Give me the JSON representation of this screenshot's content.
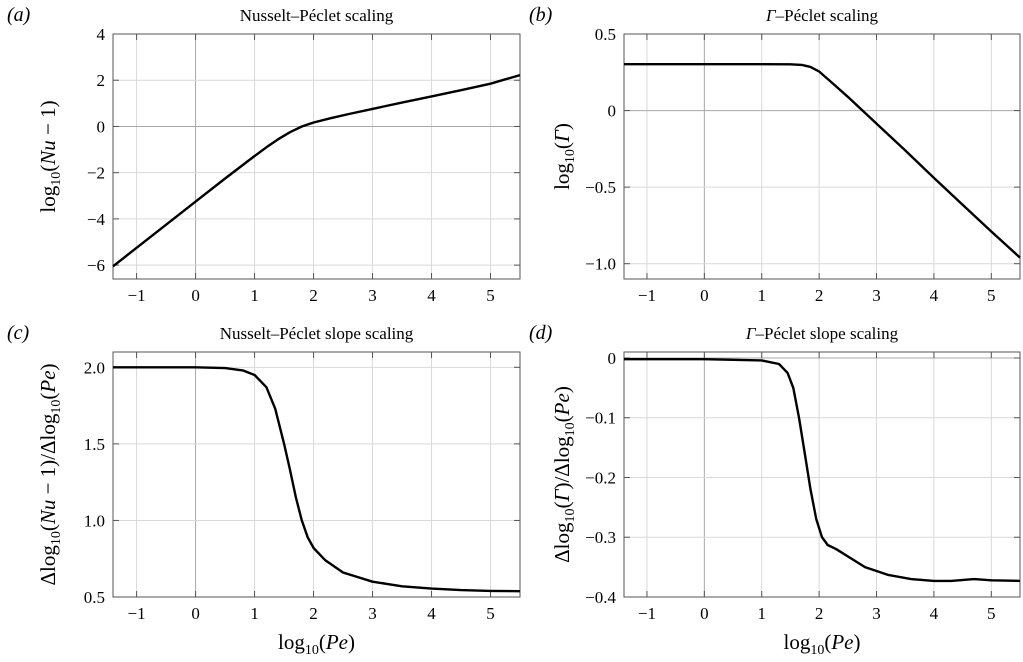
{
  "chart_data": [
    {
      "panel_label": "(a)",
      "title": "Nusselt–Péclet scaling",
      "type": "line",
      "xlabel": "",
      "ylabel": "log10(Nu − 1)",
      "xlim": [
        -1.4,
        5.5
      ],
      "ylim": [
        -6.6,
        4
      ],
      "xticks": [
        -1,
        0,
        1,
        2,
        3,
        4,
        5
      ],
      "yticks": [
        -6,
        -4,
        -2,
        0,
        2,
        4
      ],
      "ytick_labels": [
        "−6",
        "−4",
        "−2",
        "0",
        "2",
        "4"
      ],
      "grid": true,
      "x": [
        -1.4,
        -1.0,
        -0.5,
        0.0,
        0.5,
        1.0,
        1.2,
        1.4,
        1.6,
        1.8,
        2.0,
        2.3,
        2.6,
        3.0,
        3.5,
        4.0,
        4.5,
        5.0,
        5.5
      ],
      "y": [
        -6.05,
        -5.25,
        -4.25,
        -3.25,
        -2.25,
        -1.28,
        -0.9,
        -0.55,
        -0.25,
        0.0,
        0.17,
        0.36,
        0.54,
        0.76,
        1.03,
        1.3,
        1.57,
        1.85,
        2.22
      ]
    },
    {
      "panel_label": "(b)",
      "title": "Γ–Péclet scaling",
      "type": "line",
      "xlabel": "",
      "ylabel": "log10(Γ)",
      "xlim": [
        -1.4,
        5.5
      ],
      "ylim": [
        -1.1,
        0.5
      ],
      "xticks": [
        -1,
        0,
        1,
        2,
        3,
        4,
        5
      ],
      "yticks": [
        -1.0,
        -0.5,
        0,
        0.5
      ],
      "ytick_labels": [
        "−1.0",
        "−0.5",
        "0",
        "0.5"
      ],
      "grid": true,
      "x": [
        -1.4,
        -1.0,
        0.0,
        1.0,
        1.5,
        1.7,
        1.85,
        2.0,
        2.2,
        2.5,
        3.0,
        3.5,
        4.0,
        4.5,
        5.0,
        5.5
      ],
      "y": [
        0.303,
        0.303,
        0.303,
        0.303,
        0.302,
        0.298,
        0.285,
        0.255,
        0.19,
        0.09,
        -0.085,
        -0.26,
        -0.44,
        -0.615,
        -0.79,
        -0.96
      ]
    },
    {
      "panel_label": "(c)",
      "title": "Nusselt–Péclet slope scaling",
      "type": "line",
      "xlabel": "log10(Pe)",
      "ylabel": "Δlog10(Nu − 1)/Δlog10(Pe)",
      "xlim": [
        -1.4,
        5.5
      ],
      "ylim": [
        0.5,
        2.1
      ],
      "xticks": [
        -1,
        0,
        1,
        2,
        3,
        4,
        5
      ],
      "yticks": [
        0.5,
        1.0,
        1.5,
        2.0
      ],
      "ytick_labels": [
        "0.5",
        "1.0",
        "1.5",
        "2.0"
      ],
      "grid": true,
      "x": [
        -1.4,
        0.0,
        0.5,
        0.8,
        1.0,
        1.2,
        1.35,
        1.5,
        1.6,
        1.7,
        1.8,
        1.9,
        2.0,
        2.2,
        2.5,
        3.0,
        3.5,
        4.0,
        4.5,
        5.0,
        5.5
      ],
      "y": [
        2.0,
        2.0,
        1.995,
        1.98,
        1.95,
        1.87,
        1.73,
        1.5,
        1.33,
        1.15,
        1.0,
        0.89,
        0.82,
        0.74,
        0.66,
        0.6,
        0.57,
        0.555,
        0.545,
        0.54,
        0.538
      ]
    },
    {
      "panel_label": "(d)",
      "title": "Γ–Péclet slope scaling",
      "type": "line",
      "xlabel": "log10(Pe)",
      "ylabel": "Δlog10(Γ)/Δlog10(Pe)",
      "xlim": [
        -1.4,
        5.5
      ],
      "ylim": [
        -0.4,
        0.01
      ],
      "xticks": [
        -1,
        0,
        1,
        2,
        3,
        4,
        5
      ],
      "yticks": [
        -0.4,
        -0.3,
        -0.2,
        -0.1,
        0
      ],
      "ytick_labels": [
        "−0.4",
        "−0.3",
        "−0.2",
        "−0.1",
        "0"
      ],
      "grid": true,
      "x": [
        -1.4,
        0.0,
        1.0,
        1.3,
        1.45,
        1.55,
        1.65,
        1.75,
        1.85,
        1.95,
        2.05,
        2.15,
        2.3,
        2.5,
        2.8,
        3.2,
        3.6,
        4.0,
        4.3,
        4.7,
        5.0,
        5.5
      ],
      "y": [
        -0.002,
        -0.002,
        -0.004,
        -0.01,
        -0.025,
        -0.05,
        -0.1,
        -0.16,
        -0.22,
        -0.27,
        -0.3,
        -0.313,
        -0.32,
        -0.332,
        -0.35,
        -0.363,
        -0.37,
        -0.373,
        -0.373,
        -0.37,
        -0.372,
        -0.373
      ]
    }
  ]
}
